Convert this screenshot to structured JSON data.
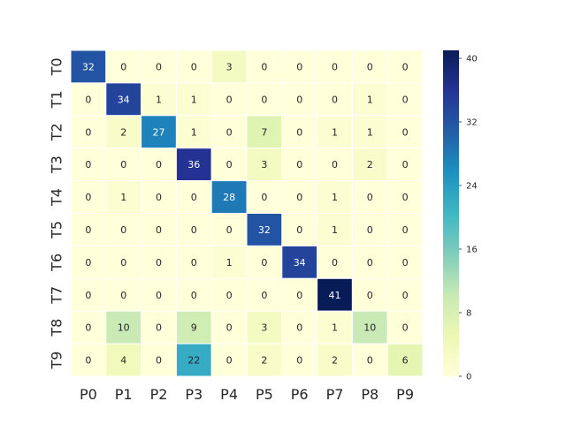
{
  "chart_data": {
    "type": "heatmap",
    "title": "",
    "xlabel": "",
    "ylabel": "",
    "x_categories": [
      "P0",
      "P1",
      "P2",
      "P3",
      "P4",
      "P5",
      "P6",
      "P7",
      "P8",
      "P9"
    ],
    "y_categories": [
      "T0",
      "T1",
      "T2",
      "T3",
      "T4",
      "T5",
      "T6",
      "T7",
      "T8",
      "T9"
    ],
    "values": [
      [
        32,
        0,
        0,
        0,
        3,
        0,
        0,
        0,
        0,
        0
      ],
      [
        0,
        34,
        1,
        1,
        0,
        0,
        0,
        0,
        1,
        0
      ],
      [
        0,
        2,
        27,
        1,
        0,
        7,
        0,
        1,
        1,
        0
      ],
      [
        0,
        0,
        0,
        36,
        0,
        3,
        0,
        0,
        2,
        0
      ],
      [
        0,
        1,
        0,
        0,
        28,
        0,
        0,
        1,
        0,
        0
      ],
      [
        0,
        0,
        0,
        0,
        0,
        32,
        0,
        1,
        0,
        0
      ],
      [
        0,
        0,
        0,
        0,
        1,
        0,
        34,
        0,
        0,
        0
      ],
      [
        0,
        0,
        0,
        0,
        0,
        0,
        0,
        41,
        0,
        0
      ],
      [
        0,
        10,
        0,
        9,
        0,
        3,
        0,
        1,
        10,
        0
      ],
      [
        0,
        4,
        0,
        22,
        0,
        2,
        0,
        2,
        0,
        6
      ]
    ],
    "colormap": "YlGnBu",
    "colorbar": {
      "range": [
        0,
        41
      ],
      "ticks": [
        0,
        8,
        16,
        24,
        32,
        40
      ]
    },
    "annotations": true,
    "grid": false,
    "cell_border_color": "#ffffff"
  }
}
